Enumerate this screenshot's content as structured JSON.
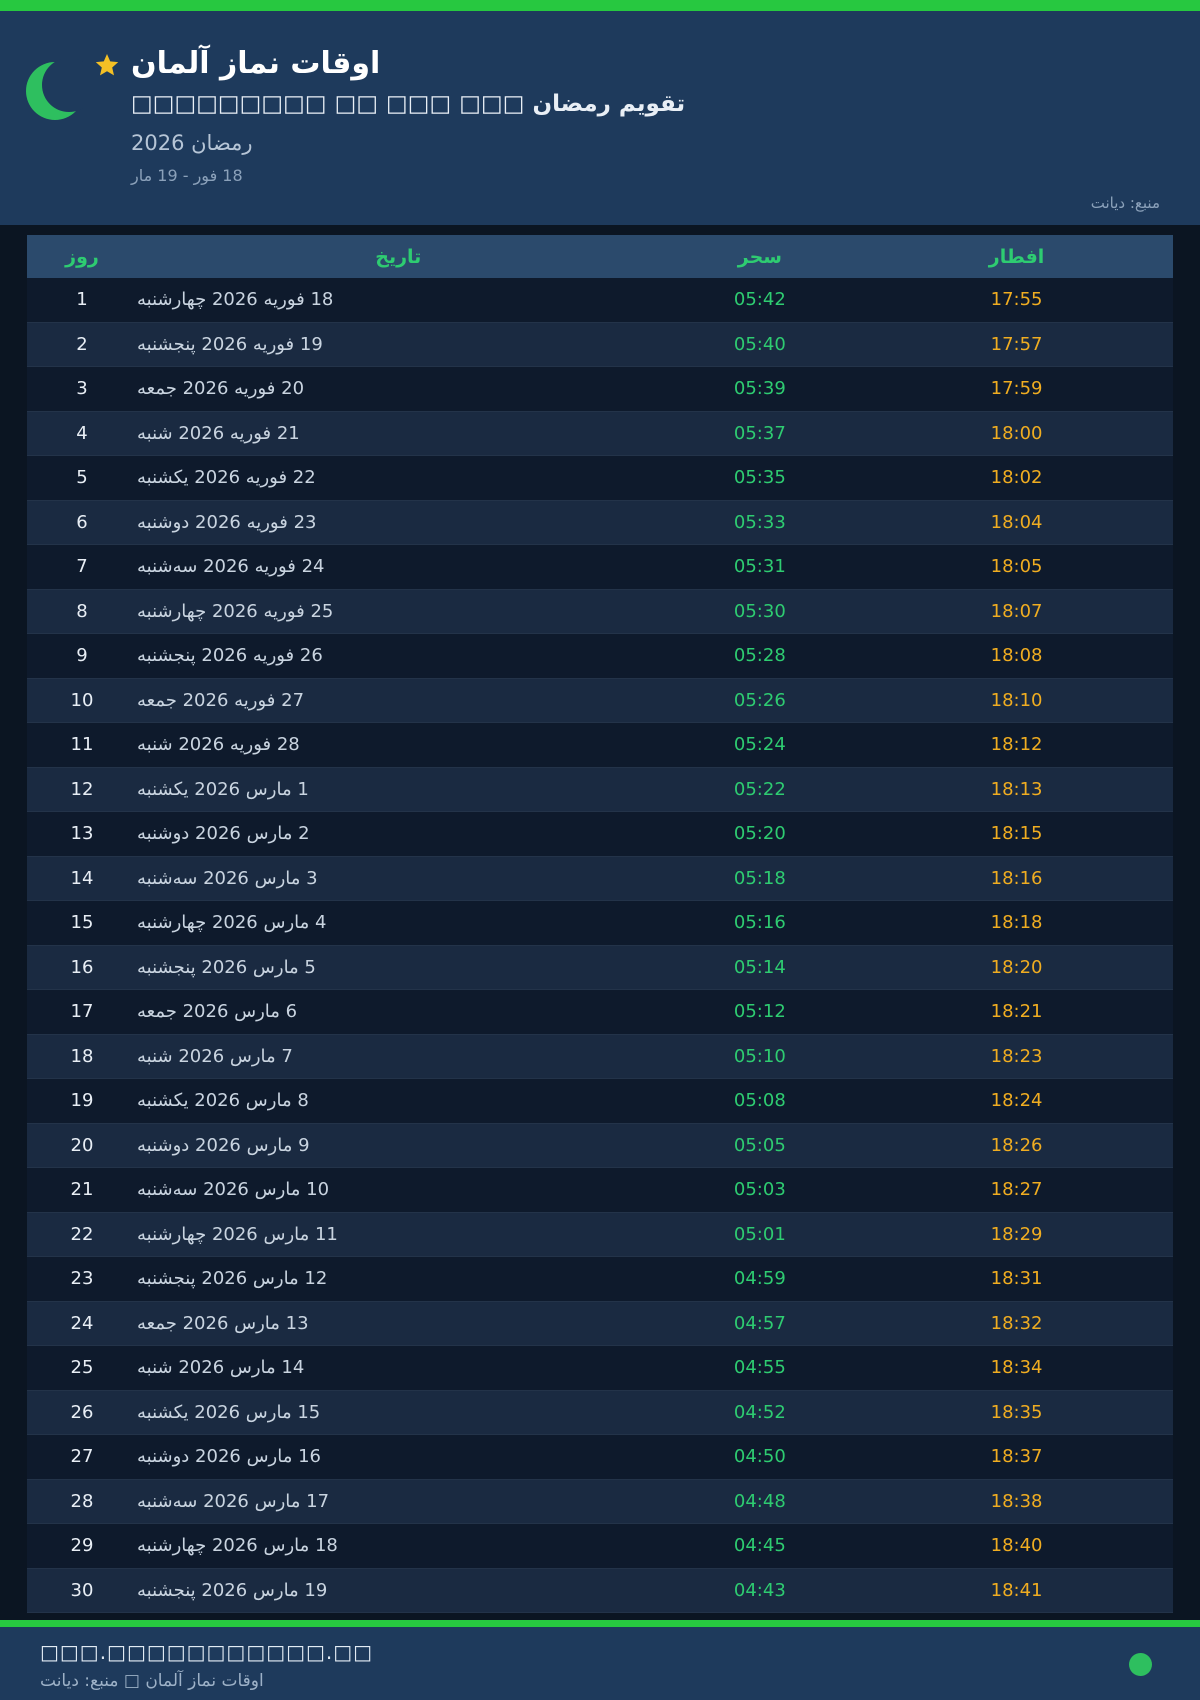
{
  "colors": {
    "accent_green_bar": "#27c840",
    "crescent_green": "#2ebf5f",
    "star_gold": "#f4c025",
    "header_bg": "#1e3a5c",
    "page_bg": "#0b1522",
    "table_header_bg": "#2b4a6c",
    "table_header_text": "#2ecc71",
    "suhoor_text": "#2ecc71",
    "iftar_text": "#f0ad21",
    "row_odd": "#0e1a2c",
    "row_even": "#1a2a41"
  },
  "header": {
    "title": "اوقات نماز آلمان",
    "subtitle": "تقویم رمضان □□□ □□□ □□ □□□□□□□□□",
    "ramadan_year": "رمضان 2026",
    "date_range": "18 فور - 19 مار",
    "source": "منبع: دیانت",
    "logo": "crescent-moon-and-star"
  },
  "table": {
    "columns": [
      "روز",
      "تاریخ",
      "سحر",
      "افطار"
    ],
    "rows": [
      {
        "day": "1",
        "date": "18 فوریه 2026 چهارشنبه",
        "suhoor": "05:42",
        "iftar": "17:55"
      },
      {
        "day": "2",
        "date": "19 فوریه 2026 پنجشنبه",
        "suhoor": "05:40",
        "iftar": "17:57"
      },
      {
        "day": "3",
        "date": "20 فوریه 2026 جمعه",
        "suhoor": "05:39",
        "iftar": "17:59"
      },
      {
        "day": "4",
        "date": "21 فوریه 2026 شنبه",
        "suhoor": "05:37",
        "iftar": "18:00"
      },
      {
        "day": "5",
        "date": "22 فوریه 2026 یکشنبه",
        "suhoor": "05:35",
        "iftar": "18:02"
      },
      {
        "day": "6",
        "date": "23 فوریه 2026 دوشنبه",
        "suhoor": "05:33",
        "iftar": "18:04"
      },
      {
        "day": "7",
        "date": "24 فوریه 2026 سه‌شنبه",
        "suhoor": "05:31",
        "iftar": "18:05"
      },
      {
        "day": "8",
        "date": "25 فوریه 2026 چهارشنبه",
        "suhoor": "05:30",
        "iftar": "18:07"
      },
      {
        "day": "9",
        "date": "26 فوریه 2026 پنجشنبه",
        "suhoor": "05:28",
        "iftar": "18:08"
      },
      {
        "day": "10",
        "date": "27 فوریه 2026 جمعه",
        "suhoor": "05:26",
        "iftar": "18:10"
      },
      {
        "day": "11",
        "date": "28 فوریه 2026 شنبه",
        "suhoor": "05:24",
        "iftar": "18:12"
      },
      {
        "day": "12",
        "date": "1 مارس 2026 یکشنبه",
        "suhoor": "05:22",
        "iftar": "18:13"
      },
      {
        "day": "13",
        "date": "2 مارس 2026 دوشنبه",
        "suhoor": "05:20",
        "iftar": "18:15"
      },
      {
        "day": "14",
        "date": "3 مارس 2026 سه‌شنبه",
        "suhoor": "05:18",
        "iftar": "18:16"
      },
      {
        "day": "15",
        "date": "4 مارس 2026 چهارشنبه",
        "suhoor": "05:16",
        "iftar": "18:18"
      },
      {
        "day": "16",
        "date": "5 مارس 2026 پنجشنبه",
        "suhoor": "05:14",
        "iftar": "18:20"
      },
      {
        "day": "17",
        "date": "6 مارس 2026 جمعه",
        "suhoor": "05:12",
        "iftar": "18:21"
      },
      {
        "day": "18",
        "date": "7 مارس 2026 شنبه",
        "suhoor": "05:10",
        "iftar": "18:23"
      },
      {
        "day": "19",
        "date": "8 مارس 2026 یکشنبه",
        "suhoor": "05:08",
        "iftar": "18:24"
      },
      {
        "day": "20",
        "date": "9 مارس 2026 دوشنبه",
        "suhoor": "05:05",
        "iftar": "18:26"
      },
      {
        "day": "21",
        "date": "10 مارس 2026 سه‌شنبه",
        "suhoor": "05:03",
        "iftar": "18:27"
      },
      {
        "day": "22",
        "date": "11 مارس 2026 چهارشنبه",
        "suhoor": "05:01",
        "iftar": "18:29"
      },
      {
        "day": "23",
        "date": "12 مارس 2026 پنجشنبه",
        "suhoor": "04:59",
        "iftar": "18:31"
      },
      {
        "day": "24",
        "date": "13 مارس 2026 جمعه",
        "suhoor": "04:57",
        "iftar": "18:32"
      },
      {
        "day": "25",
        "date": "14 مارس 2026 شنبه",
        "suhoor": "04:55",
        "iftar": "18:34"
      },
      {
        "day": "26",
        "date": "15 مارس 2026 یکشنبه",
        "suhoor": "04:52",
        "iftar": "18:35"
      },
      {
        "day": "27",
        "date": "16 مارس 2026 دوشنبه",
        "suhoor": "04:50",
        "iftar": "18:37"
      },
      {
        "day": "28",
        "date": "17 مارس 2026 سه‌شنبه",
        "suhoor": "04:48",
        "iftar": "18:38"
      },
      {
        "day": "29",
        "date": "18 مارس 2026 چهارشنبه",
        "suhoor": "04:45",
        "iftar": "18:40"
      },
      {
        "day": "30",
        "date": "19 مارس 2026 پنجشنبه",
        "suhoor": "04:43",
        "iftar": "18:41"
      }
    ]
  },
  "footer": {
    "website": "□□□.□□□□□□□□□□□.□□",
    "credit": "اوقات نماز آلمان □ منبع: دیانت"
  }
}
